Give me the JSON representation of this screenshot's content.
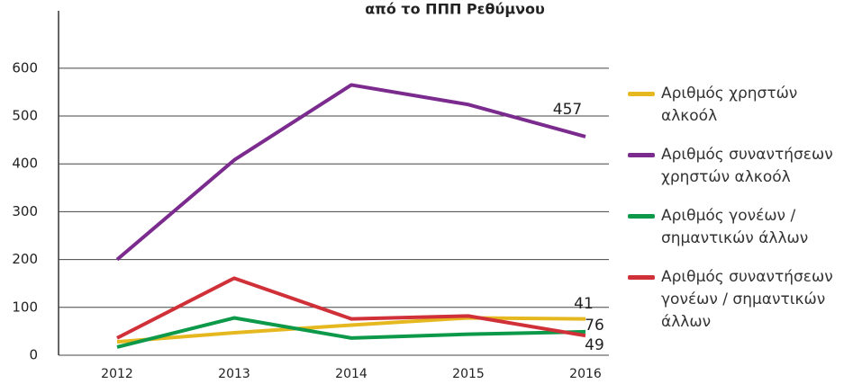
{
  "chart_data": {
    "type": "line",
    "title": "από το ΠΠΠ Ρεθύμνου",
    "categories": [
      "2012",
      "2013",
      "2014",
      "2015",
      "2016"
    ],
    "series": [
      {
        "name": "Αριθμός χρηστών αλκοόλ",
        "color": "#e6b820",
        "values": [
          28,
          47,
          63,
          78,
          76
        ]
      },
      {
        "name": "Αριθμός συναντήσεων χρηστών αλκοόλ",
        "color": "#7b2a8e",
        "values": [
          200,
          408,
          565,
          524,
          457
        ]
      },
      {
        "name": "Αριθμός γονέων / σημαντικών άλλων",
        "color": "#0c9a4a",
        "values": [
          17,
          78,
          36,
          44,
          49
        ]
      },
      {
        "name": "Αριθμός συναντήσεων γονέων / σημαντικών άλλων",
        "color": "#d03038",
        "values": [
          36,
          161,
          76,
          82,
          41
        ]
      }
    ],
    "ylim": [
      0,
      720
    ],
    "yticks": [
      0,
      100,
      200,
      300,
      400,
      500,
      600
    ],
    "grid": true
  }
}
